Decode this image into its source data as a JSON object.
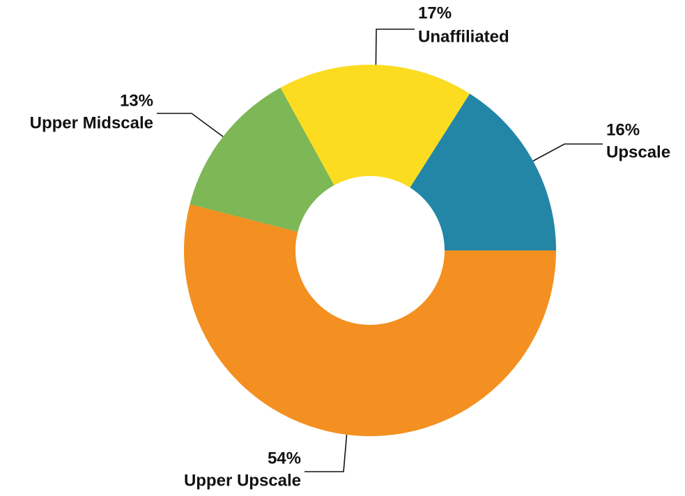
{
  "chart_data": {
    "type": "donut",
    "categories": [
      "Upscale",
      "Unaffiliated",
      "Upper Midscale",
      "Upper Upscale"
    ],
    "values": [
      16,
      17,
      13,
      54
    ],
    "value_labels": [
      "16%",
      "17%",
      "13%",
      "54%"
    ],
    "colors": [
      "#2386a6",
      "#fbdc20",
      "#7db756",
      "#f39021"
    ]
  }
}
